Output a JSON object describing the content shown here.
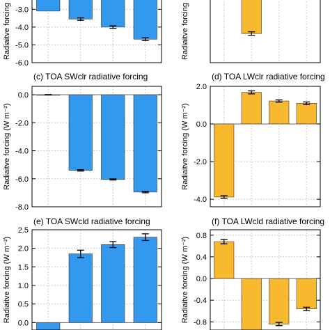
{
  "colors": {
    "sw": "#3399ee",
    "lw": "#f8b92e",
    "grid": "#cccccc",
    "axis": "#000000",
    "zero": "#555555"
  },
  "chart_data": [
    {
      "id": "a",
      "type": "bar",
      "title": "",
      "ylabel": "Radiaitve forcing",
      "ylim": [
        -6.0,
        -2.4
      ],
      "yticks": [
        -3.0,
        -4.0,
        -5.0,
        -6.0
      ],
      "tick_labels": [
        "-3.0",
        "-4.0",
        "-5.0",
        "-6.0"
      ],
      "values": [
        -3.1,
        -3.55,
        -4.0,
        -4.68
      ],
      "errors": [
        0,
        0.07,
        0.07,
        0.08
      ],
      "color": "sw"
    },
    {
      "id": "b",
      "type": "bar",
      "title": "",
      "ylabel": "Radiaitve forcing",
      "ylim": [
        -4.2,
        -2.0
      ],
      "yticks": [],
      "tick_labels": [],
      "values": [
        null,
        -3.2,
        null,
        null
      ],
      "errors": [
        0,
        0.06,
        0,
        0
      ],
      "color": "lw"
    },
    {
      "id": "c",
      "type": "bar",
      "title": "(c) TOA SWclr radiative forcing",
      "ylabel": "Radiaitve forcing (W m⁻²)",
      "ylim": [
        -8.0,
        0.6
      ],
      "yticks": [
        0.0,
        -2.0,
        -4.0,
        -6.0,
        -8.0
      ],
      "tick_labels": [
        "0.0",
        "-2.0",
        "-4.0",
        "-6.0",
        "-8.0"
      ],
      "values": [
        0.0,
        -5.4,
        -6.05,
        -6.95
      ],
      "errors": [
        0.02,
        0.05,
        0.04,
        0.05
      ],
      "color": "sw"
    },
    {
      "id": "d",
      "type": "bar",
      "title": "(d) TOA LWclr radiative forcing",
      "ylabel": "Radiaitve forcing (W m⁻²)",
      "ylim": [
        -4.4,
        2.0
      ],
      "yticks": [
        2.0,
        0.0,
        -2.0,
        -4.0
      ],
      "tick_labels": [
        "2.0",
        "0.0",
        "-2.0",
        "-4.0"
      ],
      "values": [
        -3.88,
        1.68,
        1.22,
        1.1
      ],
      "errors": [
        0.07,
        0.08,
        0.06,
        0.07
      ],
      "color": "lw"
    },
    {
      "id": "e",
      "type": "bar",
      "title": "(e) TOA SWcld radiative forcing",
      "ylabel": "Radiaitve forcing (W m⁻²)",
      "ylim": [
        -0.2,
        2.5
      ],
      "yticks": [
        0.0,
        0.5,
        1.0,
        1.5,
        2.0,
        2.5
      ],
      "tick_labels": [
        "0.0",
        "0.5",
        "1.0",
        "1.5",
        "2.0",
        "2.5"
      ],
      "values": [
        -0.2,
        1.85,
        2.1,
        2.3
      ],
      "errors": [
        0,
        0.1,
        0.08,
        0.09
      ],
      "color": "sw"
    },
    {
      "id": "f",
      "type": "bar",
      "title": "(f) TOA LWcld radiative forcing",
      "ylabel": "Radiaitve forcing (W m⁻²)",
      "ylim": [
        -0.95,
        0.9
      ],
      "yticks": [
        0.8,
        0.4,
        0.0,
        -0.4,
        -0.8
      ],
      "tick_labels": [
        "0.8",
        "0.4",
        "0.0",
        "-0.4",
        "-0.8"
      ],
      "values": [
        0.68,
        -0.95,
        -0.84,
        -0.56
      ],
      "errors": [
        0.04,
        0,
        0.03,
        0.03
      ],
      "color": "lw"
    }
  ]
}
